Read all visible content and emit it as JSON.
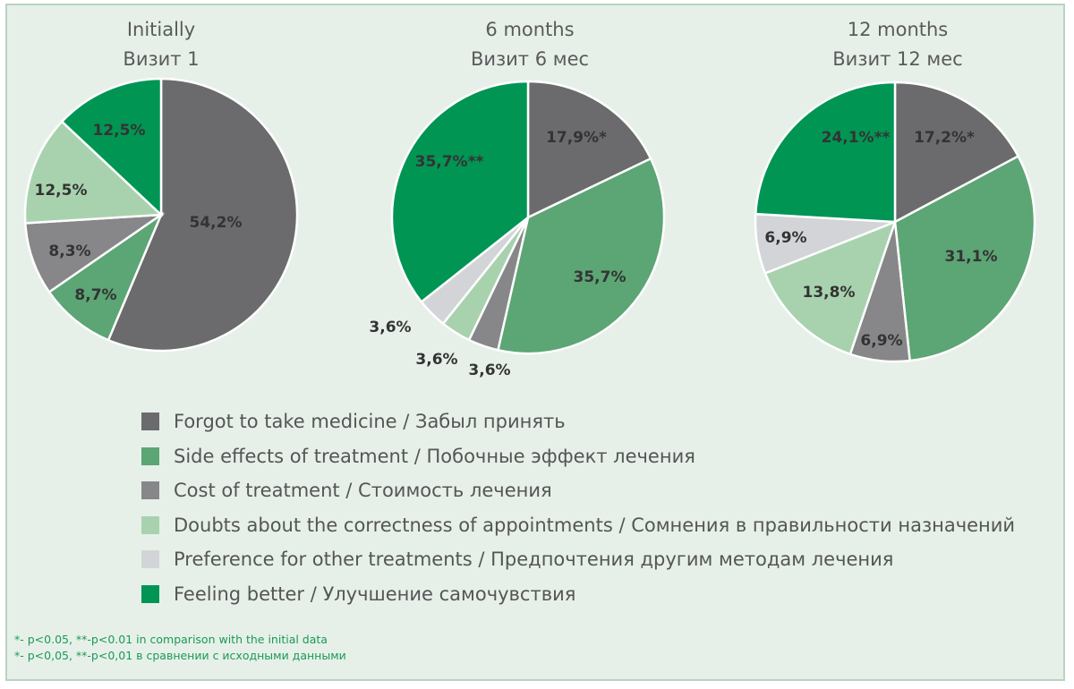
{
  "categories": [
    "Forgot to take medicine / Забыл принять",
    "Side effects of treatment / Побочные эффект лечения",
    "Cost of treatment / Стоимость лечения",
    "Doubts about the correctness of appointments / Сомнения в правильности назначений",
    "Preference for other treatments / Предпочтения другим методам лечения",
    "Feeling better / Улучшение самочувствия"
  ],
  "colors": [
    "#6b6b6d",
    "#5ca574",
    "#87878a",
    "#a8d2ae",
    "#d3d4d8",
    "#019554"
  ],
  "notes": {
    "en": "*- p<0.05, **-p<0.01 in comparison with the initial data",
    "ru": "*- p<0,05, **-p<0,01 в сравнении с исходными данными"
  },
  "chart_data": [
    {
      "type": "pie",
      "title": [
        "Initially",
        "Визит 1"
      ],
      "values": [
        54.2,
        8.7,
        8.3,
        12.5,
        0,
        12.5
      ],
      "labels": [
        "54,2%",
        "8,7%",
        "8,3%",
        "12,5%",
        "",
        "12,5%"
      ]
    },
    {
      "type": "pie",
      "title": [
        "6 months",
        "Визит 6 мес"
      ],
      "values": [
        17.9,
        35.7,
        3.6,
        3.6,
        3.6,
        35.7
      ],
      "labels": [
        "17,9%*",
        "35,7%",
        "3,6%",
        "3,6%",
        "3,6%",
        "35,7%**"
      ]
    },
    {
      "type": "pie",
      "title": [
        "12 months",
        "Визит 12 мес"
      ],
      "values": [
        17.2,
        31.1,
        6.9,
        13.8,
        6.9,
        24.1
      ],
      "labels": [
        "17,2%*",
        "31,1%",
        "6,9%",
        "13,8%",
        "6,9%",
        "24,1%**"
      ]
    }
  ]
}
